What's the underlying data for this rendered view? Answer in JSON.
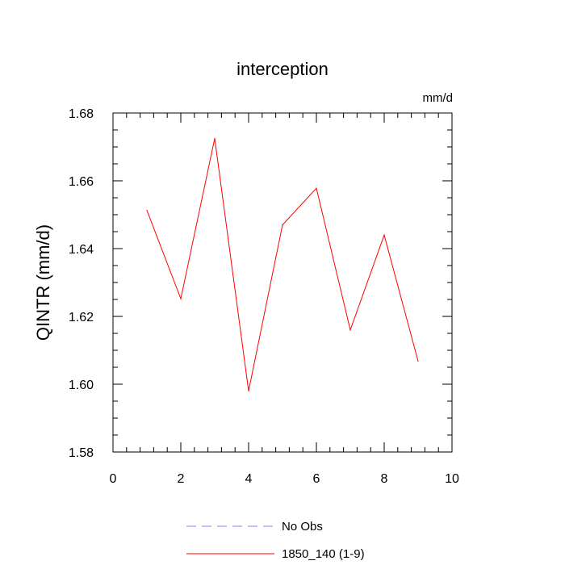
{
  "chart_data": {
    "type": "line",
    "title": "interception",
    "units": "mm/d",
    "ylabel": "QINTR  (mm/d)",
    "xlim": [
      0,
      10
    ],
    "ylim": [
      1.58,
      1.68
    ],
    "x_ticks": [
      "0",
      "2",
      "4",
      "6",
      "8",
      "10"
    ],
    "y_ticks": [
      "1.58",
      "1.60",
      "1.62",
      "1.64",
      "1.66",
      "1.68"
    ],
    "grid": false,
    "legend_position": "bottom",
    "series": [
      {
        "name": "No Obs",
        "color": "#8080ff",
        "style": "dashed",
        "x": [],
        "y": []
      },
      {
        "name": "1850_140 (1-9)",
        "color": "#ff0000",
        "style": "solid",
        "x": [
          1,
          2,
          3,
          4,
          5,
          6,
          7,
          8,
          9
        ],
        "y": [
          1.6513,
          1.6252,
          1.6725,
          1.598,
          1.647,
          1.6578,
          1.616,
          1.644,
          1.6068
        ]
      }
    ]
  }
}
